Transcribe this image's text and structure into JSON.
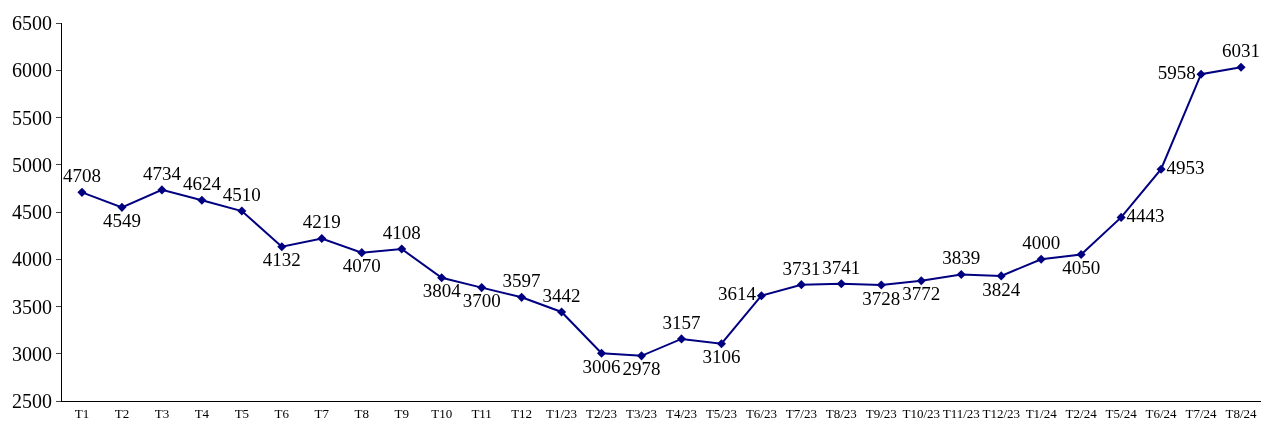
{
  "chart_data": {
    "type": "line",
    "categories": [
      "T1",
      "T2",
      "T3",
      "T4",
      "T5",
      "T6",
      "T7",
      "T8",
      "T9",
      "T10",
      "T11",
      "T12",
      "T1/23",
      "T2/23",
      "T3/23",
      "T4/23",
      "T5/23",
      "T6/23",
      "T7/23",
      "T8/23",
      "T9/23",
      "T10/23",
      "T11/23",
      "T12/23",
      "T1/24",
      "T2/24",
      "T5/24",
      "T6/24",
      "T7/24",
      "T8/24"
    ],
    "series": [
      {
        "color": "#000080",
        "values": [
          4708,
          4549,
          4734,
          4624,
          4510,
          4132,
          4219,
          4070,
          4108,
          3804,
          3700,
          3597,
          3442,
          3006,
          2978,
          3157,
          3106,
          3614,
          3731,
          3741,
          3728,
          3772,
          3839,
          3824,
          4000,
          4050,
          4443,
          4953,
          5958,
          6031
        ]
      }
    ],
    "ylim": [
      2500,
      6500
    ],
    "yticks": [
      2500,
      3000,
      3500,
      4000,
      4500,
      5000,
      5500,
      6000,
      6500
    ],
    "marker": "diamond",
    "line_style": "solid",
    "data_labels": true
  }
}
